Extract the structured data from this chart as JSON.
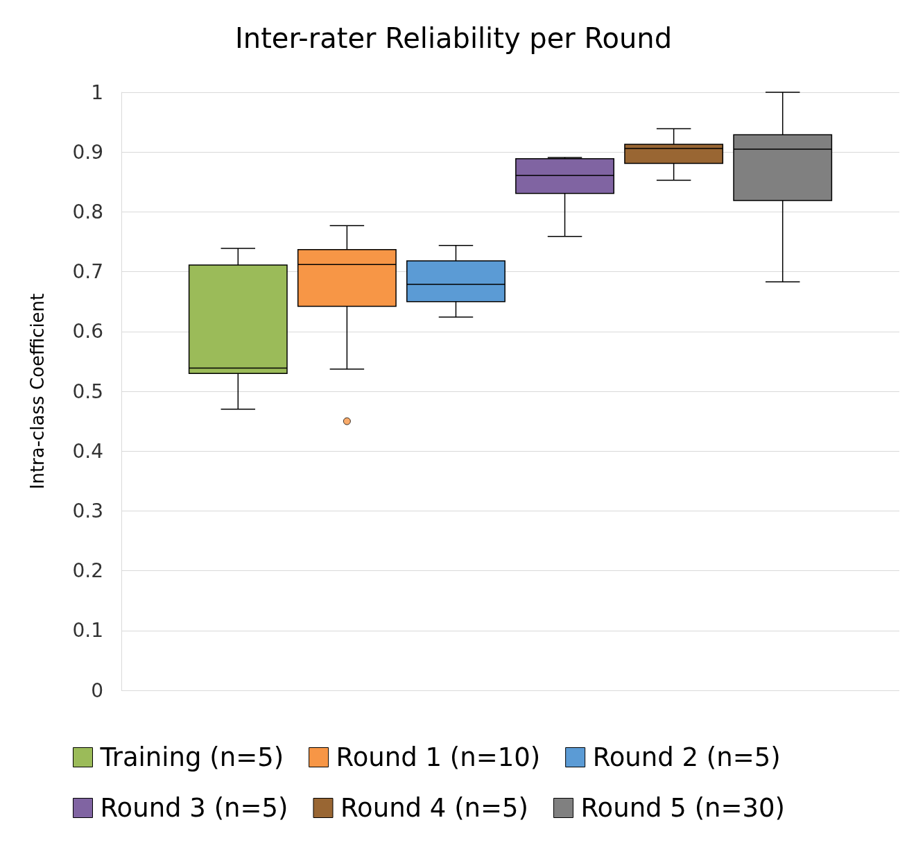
{
  "chart_data": {
    "type": "box",
    "title": "Inter-rater Reliability per Round",
    "ylabel": "Intra-class Coefficient",
    "categories": [
      null
    ],
    "ylim": [
      0,
      1
    ],
    "yticks": [
      0,
      0.1,
      0.2,
      0.3,
      0.4,
      0.5,
      0.6,
      0.7,
      0.8,
      0.9,
      1
    ],
    "grid": "y",
    "legend": "bottom",
    "tick_labels": "y",
    "series": [
      {
        "name": "Training (n=5)",
        "color": "#9bbb59",
        "boxes": [
          {
            "low": 0.47,
            "q1": 0.53,
            "median": 0.539,
            "q3": 0.711,
            "high": 0.739
          }
        ]
      },
      {
        "name": "Round 1 (n=10)",
        "color": "#f79646",
        "boxes": [
          {
            "low": 0.537,
            "q1": 0.642,
            "median": 0.712,
            "q3": 0.737,
            "high": 0.777,
            "outliers": [
              0.45
            ]
          }
        ]
      },
      {
        "name": "Round 2 (n=5)",
        "color": "#5b9bd5",
        "boxes": [
          {
            "low": 0.624,
            "q1": 0.65,
            "median": 0.679,
            "q3": 0.718,
            "high": 0.744
          }
        ]
      },
      {
        "name": "Round 3 (n=5)",
        "color": "#8064a2",
        "boxes": [
          {
            "low": 0.759,
            "q1": 0.831,
            "median": 0.861,
            "q3": 0.889,
            "high": 0.891
          }
        ]
      },
      {
        "name": "Round 4 (n=5)",
        "color": "#996633",
        "boxes": [
          {
            "low": 0.853,
            "q1": 0.881,
            "median": 0.906,
            "q3": 0.913,
            "high": 0.939
          }
        ]
      },
      {
        "name": "Round 5 (n=30)",
        "color": "#808080",
        "boxes": [
          {
            "low": 0.683,
            "q1": 0.819,
            "median": 0.905,
            "q3": 0.929,
            "high": 1.0
          }
        ]
      }
    ]
  }
}
